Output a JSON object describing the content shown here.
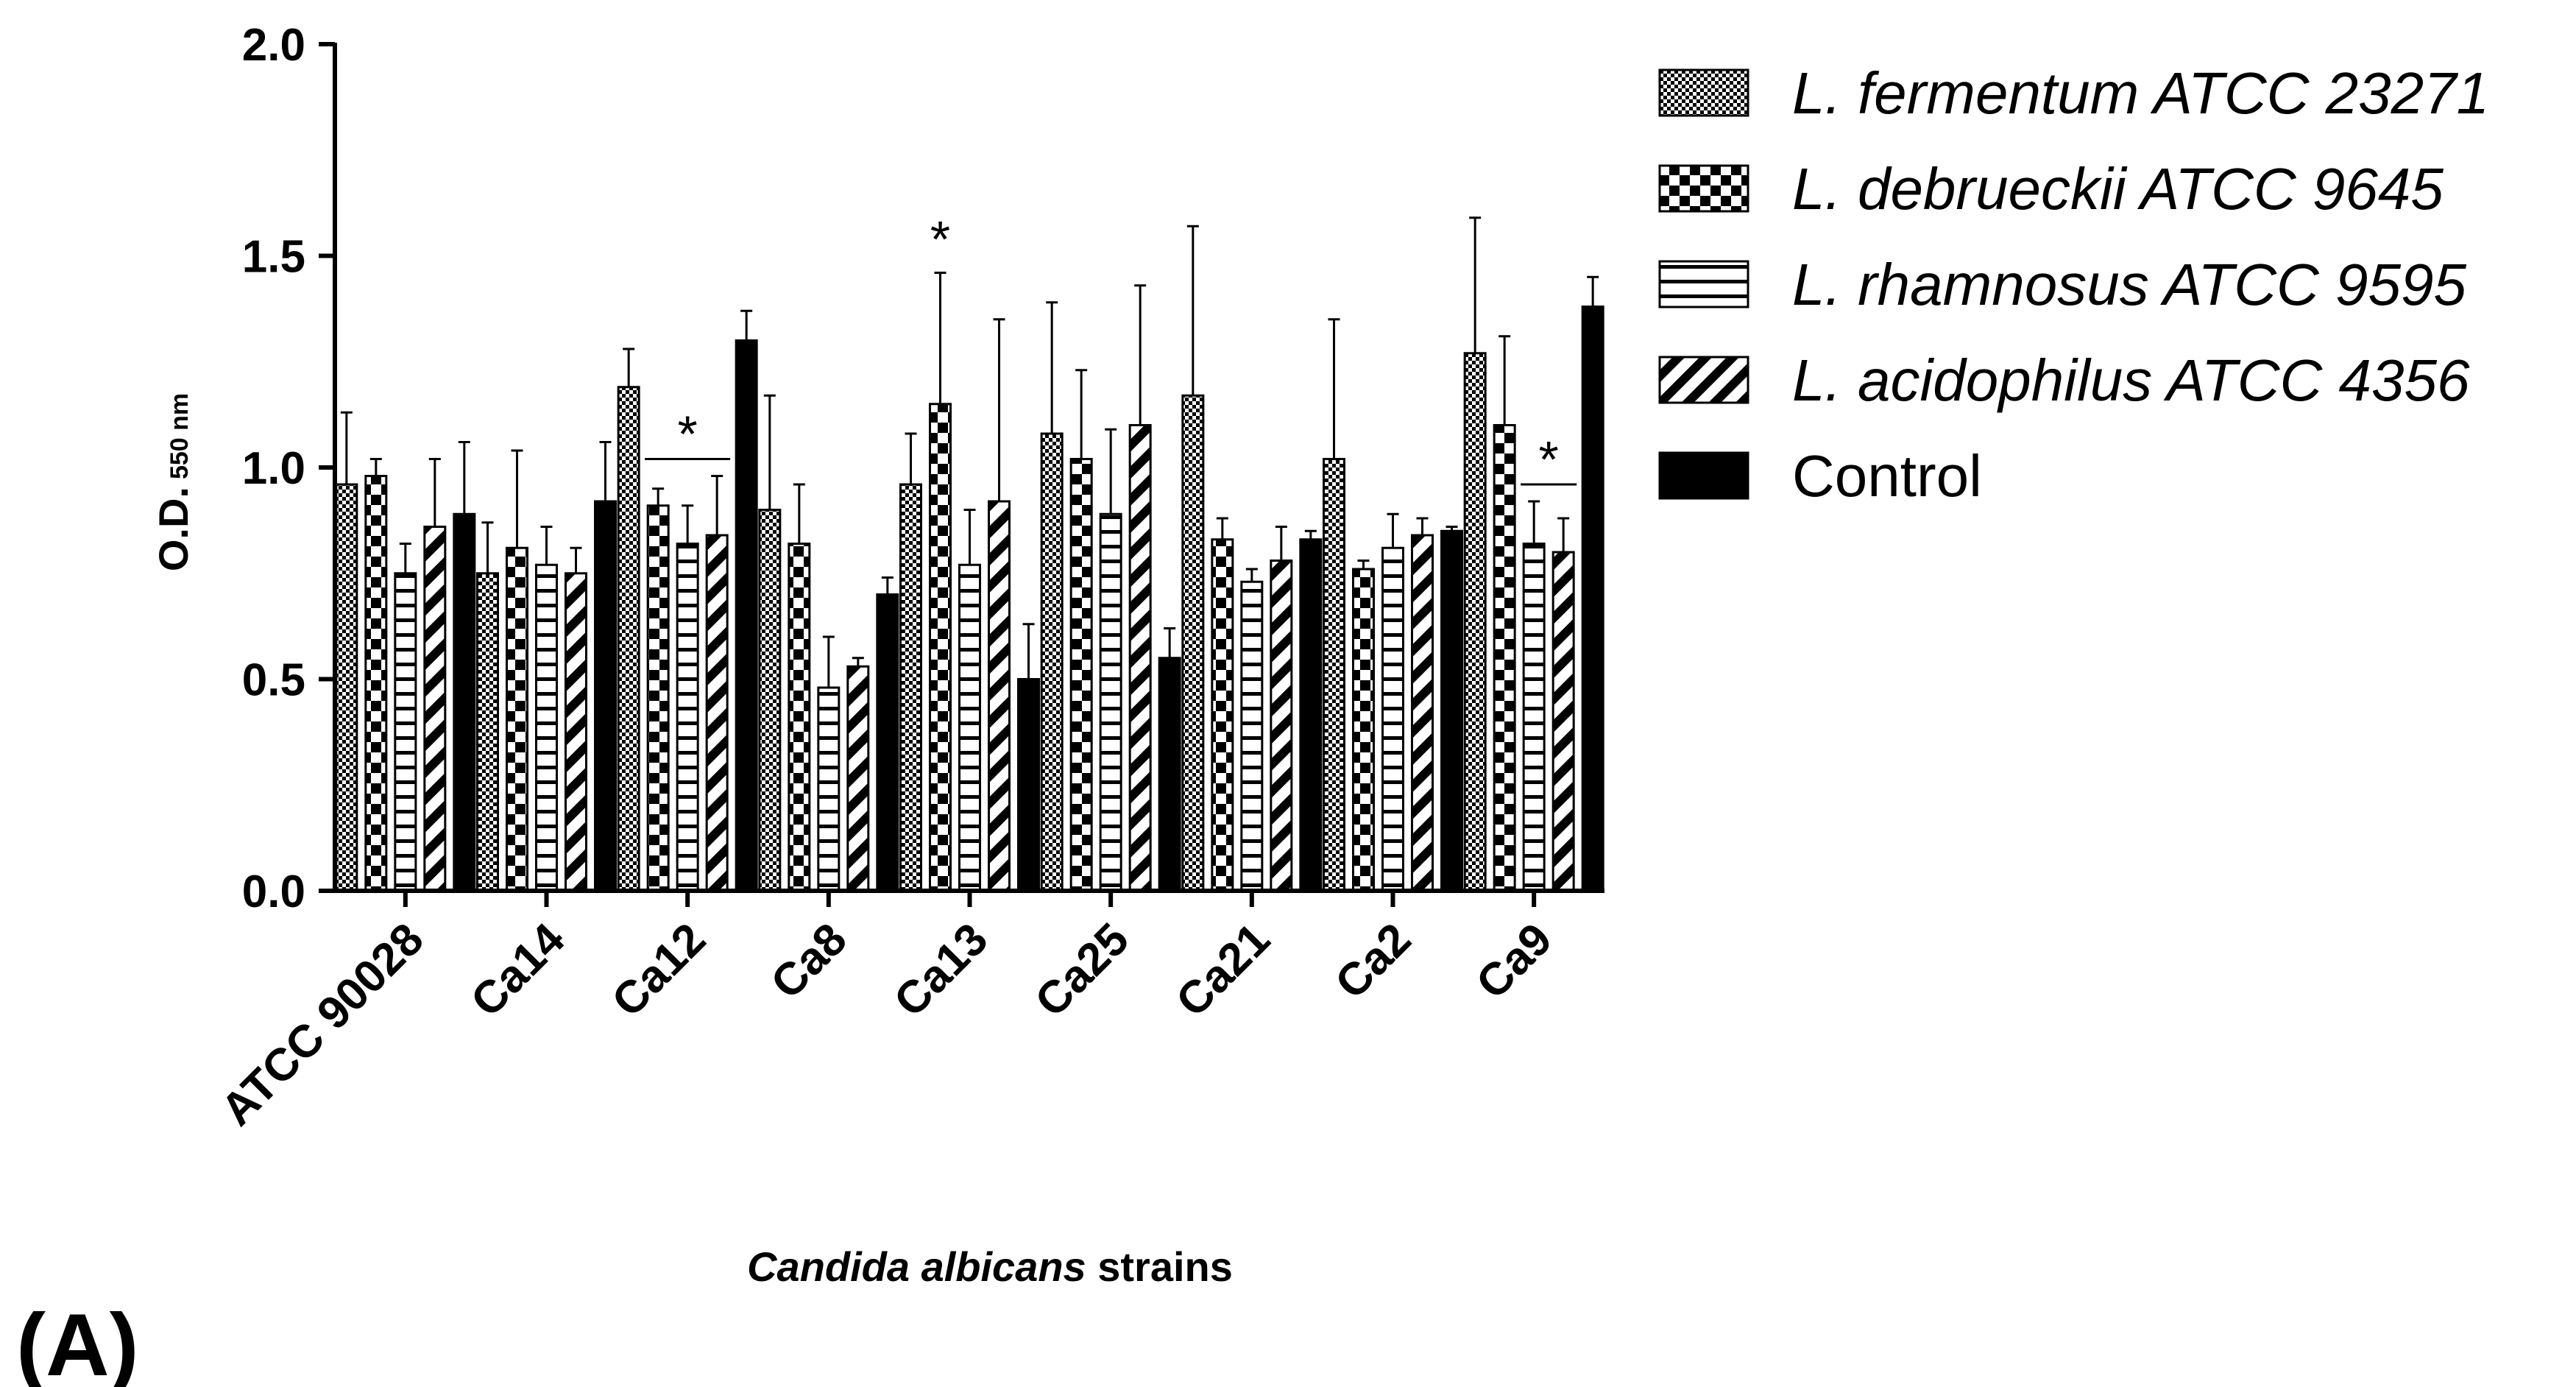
{
  "panel_label": "(A)",
  "chart_data": {
    "type": "bar",
    "title": "",
    "xlabel_italic": "Candida albicans",
    "xlabel_rest": " strains",
    "ylabel_main": "O.D.",
    "ylabel_sub": "550 nm",
    "ylim": [
      0,
      2.0
    ],
    "yticks": [
      "0.0",
      "0.5",
      "1.0",
      "1.5",
      "2.0"
    ],
    "ytick_values": [
      0,
      0.5,
      1.0,
      1.5,
      2.0
    ],
    "categories": [
      "ATCC 90028",
      "Ca14",
      "Ca12",
      "Ca8",
      "Ca13",
      "Ca25",
      "Ca21",
      "Ca2",
      "Ca9"
    ],
    "series": [
      {
        "name": "L. fermentum ATCC 23271",
        "pattern": "fine-checker",
        "italic": true,
        "values": [
          0.96,
          0.75,
          1.19,
          0.9,
          0.96,
          1.08,
          1.17,
          1.02,
          1.27
        ],
        "errors": [
          0.17,
          0.12,
          0.09,
          0.27,
          0.12,
          0.31,
          0.4,
          0.33,
          0.32
        ]
      },
      {
        "name": "L. debrueckii ATCC 9645",
        "pattern": "coarse-checker",
        "italic": true,
        "values": [
          0.98,
          0.81,
          0.91,
          0.82,
          1.15,
          1.02,
          0.83,
          0.76,
          1.1
        ],
        "errors": [
          0.04,
          0.23,
          0.04,
          0.14,
          0.31,
          0.21,
          0.05,
          0.02,
          0.21
        ]
      },
      {
        "name": "L. rhamnosus ATCC 9595",
        "pattern": "horizontal-lines",
        "italic": true,
        "values": [
          0.75,
          0.77,
          0.82,
          0.48,
          0.77,
          0.89,
          0.73,
          0.81,
          0.82
        ],
        "errors": [
          0.07,
          0.09,
          0.09,
          0.12,
          0.13,
          0.2,
          0.03,
          0.08,
          0.1
        ]
      },
      {
        "name": "L. acidophilus ATCC 4356",
        "pattern": "diagonal",
        "italic": true,
        "values": [
          0.86,
          0.75,
          0.84,
          0.53,
          0.92,
          1.1,
          0.78,
          0.84,
          0.8
        ],
        "errors": [
          0.16,
          0.06,
          0.14,
          0.02,
          0.43,
          0.33,
          0.08,
          0.04,
          0.08
        ]
      },
      {
        "name": "Control",
        "pattern": "solid",
        "italic": false,
        "values": [
          0.89,
          0.92,
          1.3,
          0.7,
          0.5,
          0.55,
          0.83,
          0.85,
          1.38
        ],
        "errors": [
          0.17,
          0.14,
          0.07,
          0.04,
          0.13,
          0.07,
          0.02,
          0.01,
          0.07
        ]
      }
    ],
    "significance": [
      {
        "category": "Ca12",
        "symbol": "*",
        "bracket": true,
        "series_from": 1,
        "series_to": 3,
        "value": 1.02
      },
      {
        "category": "Ca13",
        "symbol": "*",
        "bracket": false,
        "series_from": 1,
        "series_to": 1,
        "value": 1.48
      },
      {
        "category": "Ca9",
        "symbol": "*",
        "bracket": true,
        "series_from": 2,
        "series_to": 3,
        "value": 0.96
      }
    ],
    "legend_position": "right"
  }
}
